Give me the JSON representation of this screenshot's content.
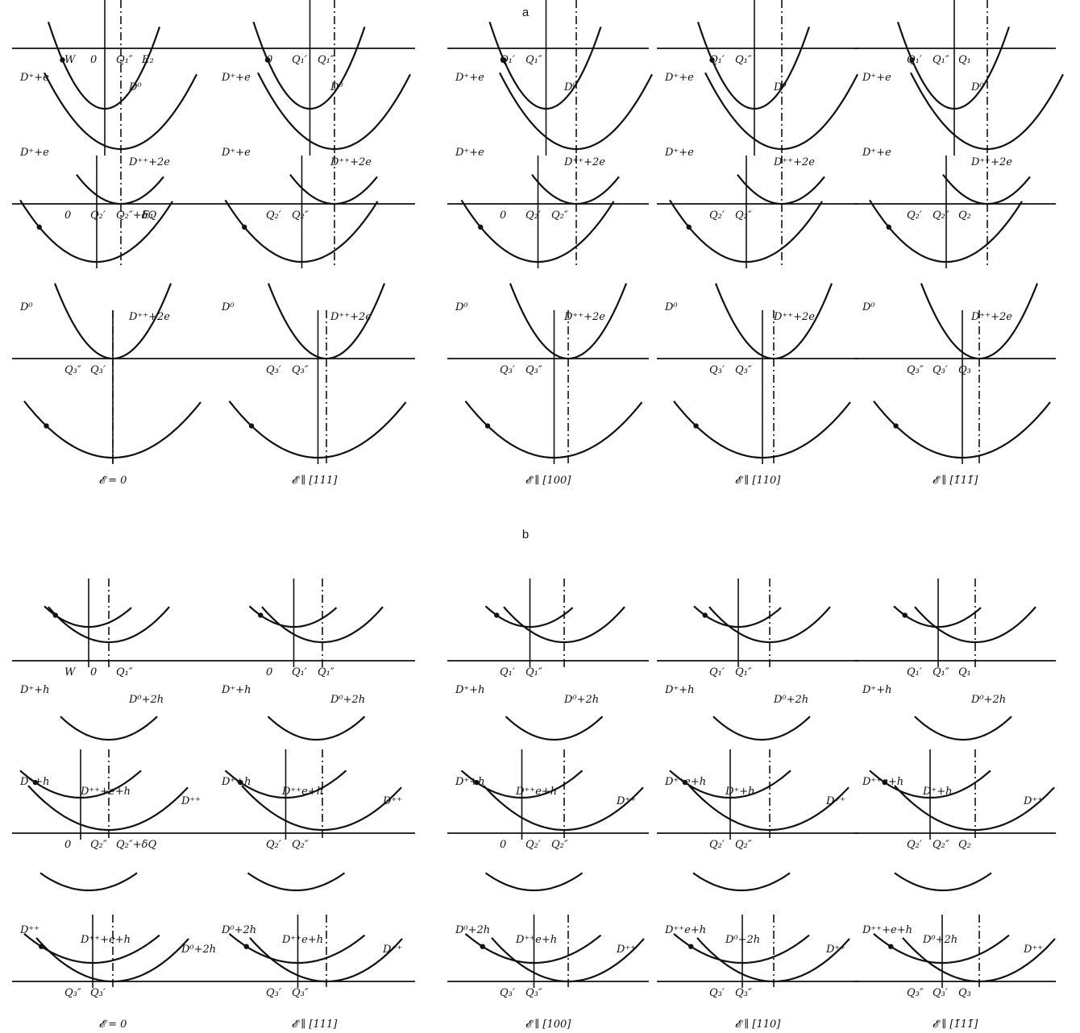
{
  "sections": [
    {
      "id": "a",
      "label": "a",
      "panels": [
        {
          "field_label": "𝓔 = 0",
          "rows": [
            {
              "curves": [
                "D⁺+e",
                "D⁰"
              ],
              "labels": [
                "W",
                "0",
                "Q₁″",
                "E₂"
              ]
            },
            {
              "curves": [
                "D⁺+e",
                "D⁺⁺+2e"
              ],
              "labels": [
                "0",
                "Q₂′",
                "Q₂″+δQ",
                "E₁"
              ]
            },
            {
              "curves": [
                "D⁰",
                "D⁺⁺+2e"
              ],
              "labels": [
                "Q₃″",
                "Q₃′"
              ]
            }
          ]
        },
        {
          "field_label": "𝓔 ∥ [111]",
          "rows": [
            {
              "curves": [
                "D⁺+e",
                "D⁰"
              ],
              "labels": [
                "0",
                "Q₁′",
                "Q₁″"
              ]
            },
            {
              "curves": [
                "D⁺+e",
                "D⁺⁺+2e"
              ],
              "labels": [
                "Q₂′",
                "Q₂″"
              ]
            },
            {
              "curves": [
                "D⁰",
                "D⁺⁺+2e"
              ],
              "labels": [
                "Q₃′",
                "Q₃″"
              ]
            }
          ]
        },
        {
          "field_label": "𝓔 ∥ [100]",
          "rows": [
            {
              "curves": [
                "D⁺+e",
                "D⁰"
              ],
              "labels": [
                "Q₁′",
                "Q₁″"
              ]
            },
            {
              "curves": [
                "D⁺+e",
                "D⁺⁺+2e"
              ],
              "labels": [
                "0",
                "Q₂′",
                "Q₂″"
              ]
            },
            {
              "curves": [
                "D⁰",
                "D⁺⁺+2e"
              ],
              "labels": [
                "Q₃′",
                "Q₃″"
              ]
            }
          ]
        },
        {
          "field_label": "𝓔 ∥ [110]",
          "rows": [
            {
              "curves": [
                "D⁺+e",
                "D⁰"
              ],
              "labels": [
                "Q₁′",
                "Q₁″"
              ]
            },
            {
              "curves": [
                "D⁺+e",
                "D⁺⁺+2e"
              ],
              "labels": [
                "Q₂′",
                "Q₂″"
              ]
            },
            {
              "curves": [
                "D⁰",
                "D⁺⁺+2e"
              ],
              "labels": [
                "Q₃′",
                "Q₃″"
              ]
            }
          ]
        },
        {
          "field_label": "𝓔 ∥ [1̄11̄]",
          "rows": [
            {
              "curves": [
                "D⁺+e",
                "D⁰"
              ],
              "labels": [
                "Q₁′",
                "Q₁″",
                "Q₁"
              ]
            },
            {
              "curves": [
                "D⁺+e",
                "D⁺⁺+2e"
              ],
              "labels": [
                "Q₂′",
                "Q₂″",
                "Q₂"
              ]
            },
            {
              "curves": [
                "D⁰",
                "D⁺⁺+2e"
              ],
              "labels": [
                "Q₃″",
                "Q₃′",
                "Q₃"
              ]
            }
          ]
        }
      ]
    },
    {
      "id": "b",
      "label": "b",
      "panels": [
        {
          "field_label": "𝓔 = 0",
          "rows": [
            {
              "curves": [
                "D⁺+h",
                "D⁰+2h"
              ],
              "labels": [
                "W",
                "0",
                "Q₁″"
              ]
            },
            {
              "curves": [
                "D⁺+h",
                "D⁺⁺+e+h",
                "D⁺⁺"
              ],
              "labels": [
                "0",
                "Q₂″",
                "Q₂″+δQ"
              ]
            },
            {
              "curves": [
                "D⁺⁺",
                "D⁺⁺+e+h",
                "D⁰+2h"
              ],
              "labels": [
                "Q₃″",
                "Q₃′"
              ]
            }
          ]
        },
        {
          "field_label": "𝓔 ∥ [111]",
          "rows": [
            {
              "curves": [
                "D⁺+h",
                "D⁰+2h"
              ],
              "labels": [
                "0",
                "Q₁′",
                "Q₁″"
              ]
            },
            {
              "curves": [
                "D⁺+h",
                "D⁺⁺e+h",
                "D⁺⁺"
              ],
              "labels": [
                "Q₂′",
                "Q₂″"
              ]
            },
            {
              "curves": [
                "D⁰+2h",
                "D⁺⁺e+h",
                "D⁺⁺"
              ],
              "labels": [
                "Q₃′",
                "Q₃″"
              ]
            }
          ]
        },
        {
          "field_label": "𝓔 ∥ [100]",
          "rows": [
            {
              "curves": [
                "D⁺+h",
                "D⁰+2h"
              ],
              "labels": [
                "Q₁′",
                "Q₁″"
              ]
            },
            {
              "curves": [
                "D⁺+h",
                "D⁺⁺e+h",
                "D⁺⁺"
              ],
              "labels": [
                "0",
                "Q₂′",
                "Q₂″"
              ]
            },
            {
              "curves": [
                "D⁰+2h",
                "D⁺⁺e+h",
                "D⁺⁺"
              ],
              "labels": [
                "Q₃′",
                "Q₃″"
              ]
            }
          ]
        },
        {
          "field_label": "𝓔 ∥ [110]",
          "rows": [
            {
              "curves": [
                "D⁺+h",
                "D⁰+2h"
              ],
              "labels": [
                "Q₁′",
                "Q₁″"
              ]
            },
            {
              "curves": [
                "D⁺⁺e+h",
                "D⁺+h",
                "D⁺⁺"
              ],
              "labels": [
                "Q₂′",
                "Q₂″"
              ]
            },
            {
              "curves": [
                "D⁺⁺e+h",
                "D⁰+2h",
                "D⁺⁺"
              ],
              "labels": [
                "Q₃′",
                "Q₃″"
              ]
            }
          ]
        },
        {
          "field_label": "𝓔 ∥ [1̄11̄]",
          "rows": [
            {
              "curves": [
                "D⁺+h",
                "D⁰+2h"
              ],
              "labels": [
                "Q₁′",
                "Q₁″",
                "Q₁"
              ]
            },
            {
              "curves": [
                "D⁺⁺e+h",
                "D⁺+h",
                "D⁺⁺"
              ],
              "labels": [
                "Q₂′",
                "Q₂″",
                "Q₂"
              ]
            },
            {
              "curves": [
                "D⁺⁺+e+h",
                "D⁰+2h",
                "D⁺⁺"
              ],
              "labels": [
                "Q₃″",
                "Q₃′",
                "Q₃"
              ]
            }
          ]
        }
      ]
    }
  ]
}
